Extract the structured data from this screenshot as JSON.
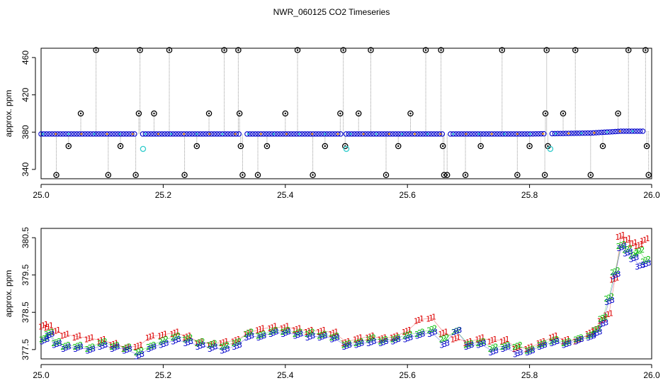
{
  "title": "NWR_060125  CO2 Timeseries",
  "colors": {
    "raw_trace": "#9a9a9a",
    "fill_a": "#2ad4d4",
    "fill_b": "#ff9900",
    "marker_1": "#dd0000",
    "marker_2": "#00bb00",
    "marker_3": "#0000cc",
    "outlier": "#000000",
    "flag": "#33cccc"
  },
  "chart_data": [
    {
      "type": "scatter",
      "panel": "top",
      "title": "NWR_060125  CO2 Timeseries",
      "xlabel": "",
      "ylabel": "approx. ppm",
      "xlim": [
        25.0,
        26.0
      ],
      "ylim": [
        330,
        470
      ],
      "x_ticks": [
        25.0,
        25.2,
        25.4,
        25.6,
        25.8,
        26.0
      ],
      "x_tick_labels": [
        "25.0",
        "25.2",
        "25.4",
        "25.6",
        "25.8",
        "26.0"
      ],
      "y_ticks": [
        340,
        380,
        420,
        460
      ],
      "y_tick_labels": [
        "340",
        "380",
        "420",
        "460"
      ],
      "grid": false,
      "legend": "none",
      "baseline_series": {
        "x": [
          25.0,
          25.1,
          25.2,
          25.3,
          25.4,
          25.5,
          25.6,
          25.7,
          25.8,
          25.9,
          25.95,
          25.99
        ],
        "y": [
          378,
          378,
          378,
          378,
          378,
          378,
          378,
          378,
          378,
          379,
          381,
          381
        ]
      },
      "gaps_x": [
        25.16,
        25.33,
        25.495,
        25.665,
        25.83
      ],
      "outliers": {
        "x": [
          25.025,
          25.045,
          25.065,
          25.09,
          25.11,
          25.13,
          25.155,
          25.16,
          25.162,
          25.185,
          25.21,
          25.235,
          25.255,
          25.275,
          25.3,
          25.323,
          25.325,
          25.327,
          25.33,
          25.355,
          25.37,
          25.4,
          25.42,
          25.445,
          25.465,
          25.49,
          25.495,
          25.498,
          25.52,
          25.54,
          25.565,
          25.585,
          25.605,
          25.63,
          25.655,
          25.658,
          25.66,
          25.665,
          25.695,
          25.72,
          25.755,
          25.78,
          25.8,
          25.825,
          25.826,
          25.828,
          25.83,
          25.855,
          25.875,
          25.9,
          25.92,
          25.945,
          25.962,
          25.99,
          25.992,
          25.995
        ],
        "y": [
          334,
          365,
          400,
          468,
          334,
          365,
          334,
          400,
          468,
          400,
          468,
          334,
          365,
          400,
          468,
          468,
          400,
          365,
          334,
          334,
          365,
          400,
          468,
          334,
          365,
          400,
          468,
          365,
          400,
          468,
          334,
          365,
          400,
          468,
          468,
          365,
          334,
          334,
          334,
          365,
          468,
          334,
          365,
          334,
          400,
          468,
          365,
          400,
          468,
          334,
          365,
          400,
          468,
          468,
          365,
          334
        ]
      },
      "flag_points": {
        "x": [
          25.167,
          25.5,
          25.834
        ],
        "y": [
          362,
          362,
          362
        ]
      }
    },
    {
      "type": "scatter",
      "panel": "bottom",
      "title": "",
      "xlabel": "",
      "ylabel": "approx. ppm",
      "xlim": [
        25.0,
        26.0
      ],
      "ylim": [
        377.25,
        380.75
      ],
      "x_ticks": [
        25.0,
        25.2,
        25.4,
        25.6,
        25.8,
        26.0
      ],
      "x_tick_labels": [
        "25.0",
        "25.2",
        "25.4",
        "25.6",
        "25.8",
        "26.0"
      ],
      "y_ticks": [
        377.5,
        378.5,
        379.5,
        380.5
      ],
      "y_tick_labels": [
        "377.5",
        "378.5",
        "379.5",
        "380.5"
      ],
      "grid": false,
      "legend": "none",
      "markers": [
        "1",
        "2",
        "3"
      ],
      "series": [
        {
          "label": "1",
          "x": [
            25.005,
            25.013,
            25.025,
            25.04,
            25.06,
            25.08,
            25.1,
            25.12,
            25.14,
            25.16,
            25.18,
            25.2,
            25.22,
            25.24,
            25.26,
            25.28,
            25.3,
            25.32,
            25.34,
            25.36,
            25.38,
            25.4,
            25.42,
            25.44,
            25.46,
            25.48,
            25.5,
            25.52,
            25.54,
            25.56,
            25.58,
            25.6,
            25.62,
            25.64,
            25.66,
            25.68,
            25.7,
            25.72,
            25.74,
            25.76,
            25.78,
            25.8,
            25.82,
            25.84,
            25.86,
            25.88,
            25.9,
            25.91,
            25.92,
            25.93,
            25.94,
            25.95,
            25.96,
            25.97,
            25.98,
            25.99
          ],
          "y": [
            378.15,
            378.12,
            378.0,
            377.9,
            377.85,
            377.8,
            377.75,
            377.65,
            377.55,
            377.6,
            377.85,
            377.9,
            377.95,
            377.85,
            377.7,
            377.65,
            377.7,
            377.75,
            377.95,
            378.05,
            378.1,
            378.1,
            378.05,
            378.0,
            378.0,
            377.95,
            377.7,
            377.8,
            377.85,
            377.8,
            377.85,
            378.0,
            378.3,
            378.35,
            377.95,
            377.8,
            377.7,
            377.8,
            377.75,
            377.75,
            377.55,
            377.55,
            377.7,
            377.85,
            377.75,
            377.75,
            377.95,
            378.05,
            378.3,
            378.45,
            379.4,
            380.55,
            380.45,
            380.35,
            380.3,
            380.45
          ]
        },
        {
          "label": "2",
          "x": [
            25.005,
            25.013,
            25.025,
            25.04,
            25.06,
            25.08,
            25.1,
            25.12,
            25.14,
            25.16,
            25.18,
            25.2,
            25.22,
            25.24,
            25.26,
            25.28,
            25.3,
            25.32,
            25.34,
            25.36,
            25.38,
            25.4,
            25.42,
            25.44,
            25.46,
            25.48,
            25.5,
            25.52,
            25.54,
            25.56,
            25.58,
            25.6,
            25.62,
            25.64,
            25.66,
            25.68,
            25.7,
            25.72,
            25.74,
            25.76,
            25.78,
            25.8,
            25.82,
            25.84,
            25.86,
            25.88,
            25.9,
            25.91,
            25.92,
            25.93,
            25.94,
            25.95,
            25.96,
            25.97,
            25.98,
            25.99
          ],
          "y": [
            377.8,
            377.95,
            377.7,
            377.6,
            377.6,
            377.55,
            377.7,
            377.6,
            377.55,
            377.45,
            377.6,
            377.75,
            377.85,
            377.8,
            377.7,
            377.65,
            377.6,
            377.7,
            377.95,
            377.9,
            378.0,
            378.0,
            377.95,
            377.95,
            377.9,
            377.85,
            377.65,
            377.7,
            377.8,
            377.75,
            377.8,
            377.9,
            377.95,
            378.05,
            377.8,
            378.0,
            377.65,
            377.7,
            377.55,
            377.6,
            377.6,
            377.5,
            377.65,
            377.75,
            377.7,
            377.8,
            377.9,
            378.05,
            378.35,
            378.9,
            379.6,
            380.3,
            380.2,
            380.05,
            380.15,
            379.9
          ]
        },
        {
          "label": "3",
          "x": [
            25.005,
            25.013,
            25.025,
            25.04,
            25.06,
            25.08,
            25.1,
            25.12,
            25.14,
            25.16,
            25.18,
            25.2,
            25.22,
            25.24,
            25.26,
            25.28,
            25.3,
            25.32,
            25.34,
            25.36,
            25.38,
            25.4,
            25.42,
            25.44,
            25.46,
            25.48,
            25.5,
            25.52,
            25.54,
            25.56,
            25.58,
            25.6,
            25.62,
            25.64,
            25.66,
            25.68,
            25.7,
            25.72,
            25.74,
            25.76,
            25.78,
            25.8,
            25.82,
            25.84,
            25.86,
            25.88,
            25.9,
            25.91,
            25.92,
            25.93,
            25.94,
            25.95,
            25.96,
            25.97,
            25.98,
            25.99
          ],
          "y": [
            377.75,
            377.9,
            377.65,
            377.55,
            377.55,
            377.5,
            377.6,
            377.55,
            377.5,
            377.35,
            377.55,
            377.65,
            377.75,
            377.7,
            377.6,
            377.55,
            377.5,
            377.6,
            377.85,
            377.85,
            377.95,
            377.95,
            377.9,
            377.85,
            377.85,
            377.8,
            377.6,
            377.65,
            377.7,
            377.7,
            377.75,
            377.8,
            377.9,
            377.95,
            377.65,
            378.0,
            377.6,
            377.65,
            377.45,
            377.55,
            377.4,
            377.45,
            377.6,
            377.7,
            377.65,
            377.75,
            377.85,
            377.95,
            378.2,
            378.8,
            379.5,
            380.25,
            380.1,
            379.95,
            379.75,
            379.8
          ]
        }
      ]
    }
  ]
}
